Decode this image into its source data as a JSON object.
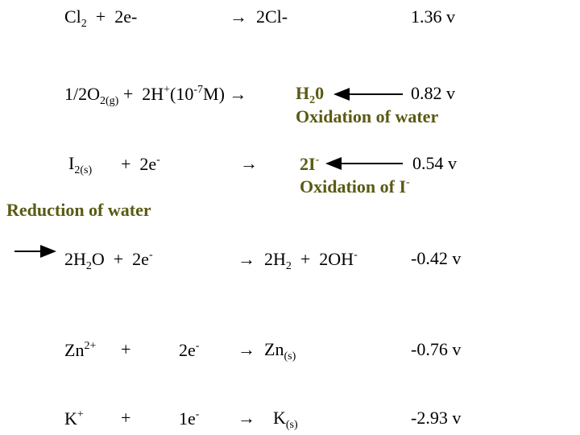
{
  "reactions": [
    {
      "left": [
        "Cl",
        "2",
        "  +  2e-"
      ],
      "right": "→  2Cl-",
      "potential": "1.36 v"
    },
    {
      "left": [
        "1/2O",
        "2(g)",
        " +  2H",
        "+",
        "(10",
        "-7",
        "M) →"
      ],
      "right": [
        "H",
        "2",
        "0"
      ],
      "potential": "0.82 v",
      "note": "Oxidation of water"
    },
    {
      "left": [
        "I",
        "2(s)"
      ],
      "middle": [
        "+  2e",
        "-"
      ],
      "arrow": "→",
      "right": [
        "2I",
        "-"
      ],
      "potential": "0.54 v",
      "note": [
        "Oxidation of I",
        "-"
      ]
    },
    {
      "left": [
        "2H",
        "2",
        "O  +  2e",
        "-"
      ],
      "right": [
        "→  2H",
        "2",
        "  +  2OH",
        "-"
      ],
      "potential": "-0.42 v"
    },
    {
      "left": [
        "Zn",
        "2+"
      ],
      "plus": "+",
      "electrons": [
        "2e",
        "-"
      ],
      "right": [
        "→  Zn",
        "(s)"
      ],
      "potential": "-0.76 v"
    },
    {
      "left": [
        "K",
        "+"
      ],
      "plus": "+",
      "electrons": [
        "1e",
        "-"
      ],
      "right": [
        "→    K",
        "(s)"
      ],
      "potential": "-2.93 v"
    }
  ],
  "label": "Reduction of water"
}
